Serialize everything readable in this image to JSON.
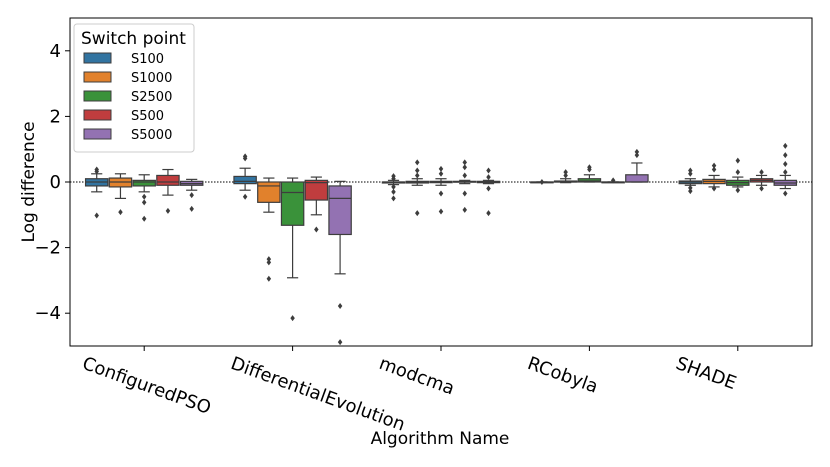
{
  "chart_data": {
    "type": "box",
    "xlabel": "Algorithm Name",
    "ylabel": "Log difference",
    "ylim": [
      -5,
      5
    ],
    "yticks": [
      -4,
      -2,
      0,
      2,
      4
    ],
    "reference_line": 0,
    "categories": [
      "ConfiguredPSO",
      "DifferentialEvolution",
      "modcma",
      "RCobyla",
      "SHADE"
    ],
    "legend": {
      "title": "Switch point",
      "placement": "top-left",
      "entries": [
        "S100",
        "S1000",
        "S2500",
        "S500",
        "S5000"
      ]
    },
    "series": [
      {
        "name": "S100",
        "color": "#3274a1",
        "boxes": [
          {
            "whislo": -0.3,
            "q1": -0.12,
            "med": 0.0,
            "q3": 0.1,
            "whishi": 0.25,
            "fliers": [
              0.38,
              0.32,
              -1.02
            ]
          },
          {
            "whislo": -0.25,
            "q1": -0.05,
            "med": 0.02,
            "q3": 0.17,
            "whishi": 0.42,
            "fliers": [
              0.78,
              0.72,
              -0.45
            ]
          },
          {
            "whislo": -0.08,
            "q1": -0.03,
            "med": 0.0,
            "q3": 0.0,
            "whishi": 0.05,
            "fliers": [
              0.18,
              0.1,
              -0.15,
              -0.3,
              -0.5
            ]
          },
          {
            "whislo": 0.0,
            "q1": 0.0,
            "med": 0.0,
            "q3": 0.0,
            "whishi": 0.0,
            "fliers": [
              0.0
            ]
          },
          {
            "whislo": -0.1,
            "q1": -0.05,
            "med": 0.0,
            "q3": 0.03,
            "whishi": 0.1,
            "fliers": [
              0.35,
              0.25,
              -0.18,
              -0.28
            ]
          }
        ]
      },
      {
        "name": "S1000",
        "color": "#e1812c",
        "boxes": [
          {
            "whislo": -0.5,
            "q1": -0.15,
            "med": 0.0,
            "q3": 0.12,
            "whishi": 0.25,
            "fliers": [
              -0.92
            ]
          },
          {
            "whislo": -0.92,
            "q1": -0.62,
            "med": -0.12,
            "q3": 0.0,
            "whishi": 0.12,
            "fliers": [
              -2.35,
              -2.45,
              -2.95
            ]
          },
          {
            "whislo": -0.1,
            "q1": -0.03,
            "med": 0.0,
            "q3": 0.02,
            "whishi": 0.1,
            "fliers": [
              0.6,
              0.35,
              0.2,
              -0.95
            ]
          },
          {
            "whislo": -0.02,
            "q1": 0.0,
            "med": 0.0,
            "q3": 0.03,
            "whishi": 0.1,
            "fliers": [
              0.3,
              0.2
            ]
          },
          {
            "whislo": -0.15,
            "q1": -0.05,
            "med": 0.02,
            "q3": 0.08,
            "whishi": 0.2,
            "fliers": [
              0.5,
              0.38,
              -0.2
            ]
          }
        ]
      },
      {
        "name": "S2500",
        "color": "#3a923a",
        "boxes": [
          {
            "whislo": -0.3,
            "q1": -0.12,
            "med": 0.0,
            "q3": 0.05,
            "whishi": 0.22,
            "fliers": [
              -0.45,
              -0.62,
              -1.12
            ]
          },
          {
            "whislo": -2.92,
            "q1": -1.32,
            "med": -0.32,
            "q3": 0.0,
            "whishi": 0.12,
            "fliers": [
              -4.15
            ]
          },
          {
            "whislo": -0.1,
            "q1": -0.02,
            "med": 0.0,
            "q3": 0.02,
            "whishi": 0.1,
            "fliers": [
              0.4,
              0.25,
              -0.35,
              -0.9
            ]
          },
          {
            "whislo": 0.0,
            "q1": 0.0,
            "med": 0.03,
            "q3": 0.1,
            "whishi": 0.22,
            "fliers": [
              0.45,
              0.38
            ]
          },
          {
            "whislo": -0.15,
            "q1": -0.1,
            "med": -0.02,
            "q3": 0.05,
            "whishi": 0.15,
            "fliers": [
              0.65,
              0.3,
              -0.25
            ]
          }
        ]
      },
      {
        "name": "S500",
        "color": "#c03d3e",
        "boxes": [
          {
            "whislo": -0.4,
            "q1": -0.1,
            "med": 0.0,
            "q3": 0.2,
            "whishi": 0.38,
            "fliers": [
              -0.88
            ]
          },
          {
            "whislo": -1.0,
            "q1": -0.55,
            "med": -0.02,
            "q3": 0.05,
            "whishi": 0.15,
            "fliers": [
              -1.45
            ]
          },
          {
            "whislo": -0.05,
            "q1": 0.0,
            "med": 0.0,
            "q3": 0.02,
            "whishi": 0.05,
            "fliers": [
              0.6,
              0.45,
              0.2,
              -0.35,
              -0.85
            ]
          },
          {
            "whislo": 0.0,
            "q1": 0.0,
            "med": 0.0,
            "q3": 0.0,
            "whishi": 0.0,
            "fliers": [
              0.05
            ]
          },
          {
            "whislo": -0.1,
            "q1": 0.0,
            "med": 0.05,
            "q3": 0.1,
            "whishi": 0.2,
            "fliers": [
              0.3,
              -0.2
            ]
          }
        ]
      },
      {
        "name": "S5000",
        "color": "#9372b2",
        "boxes": [
          {
            "whislo": -0.25,
            "q1": -0.1,
            "med": -0.05,
            "q3": 0.02,
            "whishi": 0.08,
            "fliers": [
              -0.4,
              -0.82
            ]
          },
          {
            "whislo": -2.8,
            "q1": -1.6,
            "med": -0.5,
            "q3": -0.12,
            "whishi": 0.02,
            "fliers": [
              -3.78,
              -4.88
            ]
          },
          {
            "whislo": -0.05,
            "q1": -0.02,
            "med": 0.0,
            "q3": 0.02,
            "whishi": 0.05,
            "fliers": [
              0.35,
              0.15,
              -0.2,
              -0.95
            ]
          },
          {
            "whislo": 0.0,
            "q1": 0.0,
            "med": 0.0,
            "q3": 0.22,
            "whishi": 0.58,
            "fliers": [
              0.92,
              0.82
            ]
          },
          {
            "whislo": -0.2,
            "q1": -0.1,
            "med": -0.03,
            "q3": 0.05,
            "whishi": 0.2,
            "fliers": [
              1.1,
              0.82,
              0.55,
              0.3,
              -0.35
            ]
          }
        ]
      }
    ]
  }
}
